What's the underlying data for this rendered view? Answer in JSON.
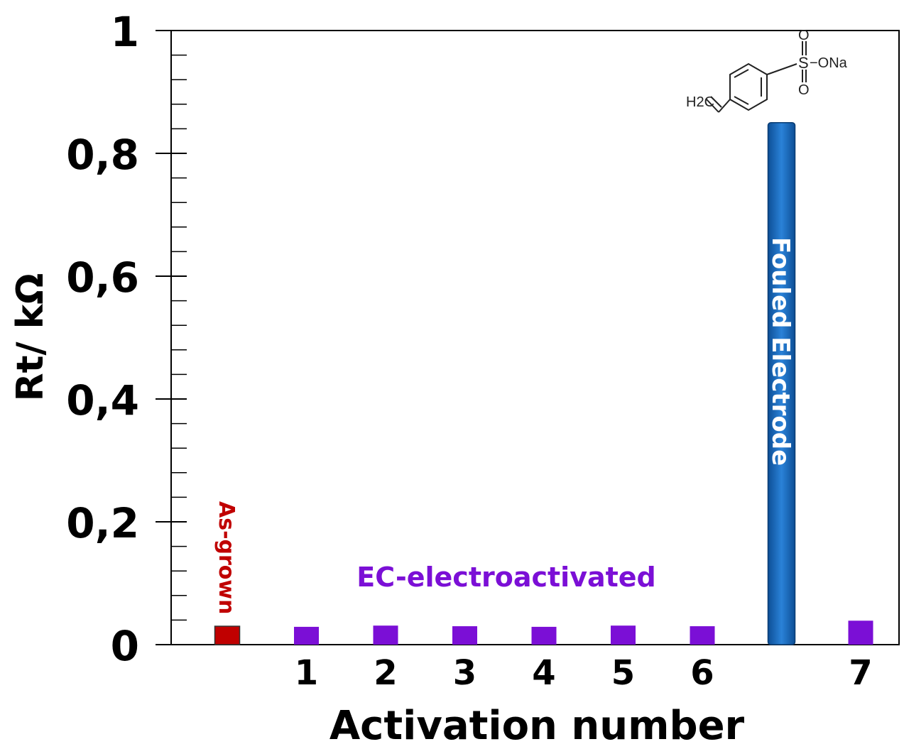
{
  "chart_data": {
    "type": "bar",
    "xlabel": "Activation number",
    "ylabel": "Rt/ kΩ",
    "ylim": [
      0,
      1
    ],
    "yticks": [
      {
        "value": 0,
        "label": "0"
      },
      {
        "value": 0.2,
        "label": "0,2"
      },
      {
        "value": 0.4,
        "label": "0,4"
      },
      {
        "value": 0.6,
        "label": "0,6"
      },
      {
        "value": 0.8,
        "label": "0,8"
      },
      {
        "value": 1,
        "label": "1"
      }
    ],
    "y_minor_step": 0.04,
    "bars": [
      {
        "slot": 0,
        "tick": "",
        "value": 0.03,
        "group": "as-grown"
      },
      {
        "slot": 1,
        "tick": "1",
        "value": 0.029,
        "group": "ec"
      },
      {
        "slot": 2,
        "tick": "2",
        "value": 0.031,
        "group": "ec"
      },
      {
        "slot": 3,
        "tick": "3",
        "value": 0.03,
        "group": "ec"
      },
      {
        "slot": 4,
        "tick": "4",
        "value": 0.029,
        "group": "ec"
      },
      {
        "slot": 5,
        "tick": "5",
        "value": 0.031,
        "group": "ec"
      },
      {
        "slot": 6,
        "tick": "6",
        "value": 0.03,
        "group": "ec"
      },
      {
        "slot": 7,
        "tick": "",
        "value": 0.85,
        "group": "fouled"
      },
      {
        "slot": 8,
        "tick": "7",
        "value": 0.039,
        "group": "ec"
      }
    ],
    "annotations": {
      "as_grown": "As-grown",
      "ec_electroactivated": "EC-electroactivated",
      "fouled": "Fouled Electrode"
    },
    "molecule": {
      "name": "sodium 4-vinylbenzenesulfonate",
      "labels": {
        "o_top": "O",
        "s": "S",
        "ona": "−ONa",
        "o_bottom": "O",
        "h2c": "H2C"
      }
    },
    "colors": {
      "as_grown": "#c00000",
      "ec": "#7b0fd6",
      "fouled": "#1565b8",
      "fouled_text": "#ffffff",
      "axis": "#000000"
    }
  }
}
